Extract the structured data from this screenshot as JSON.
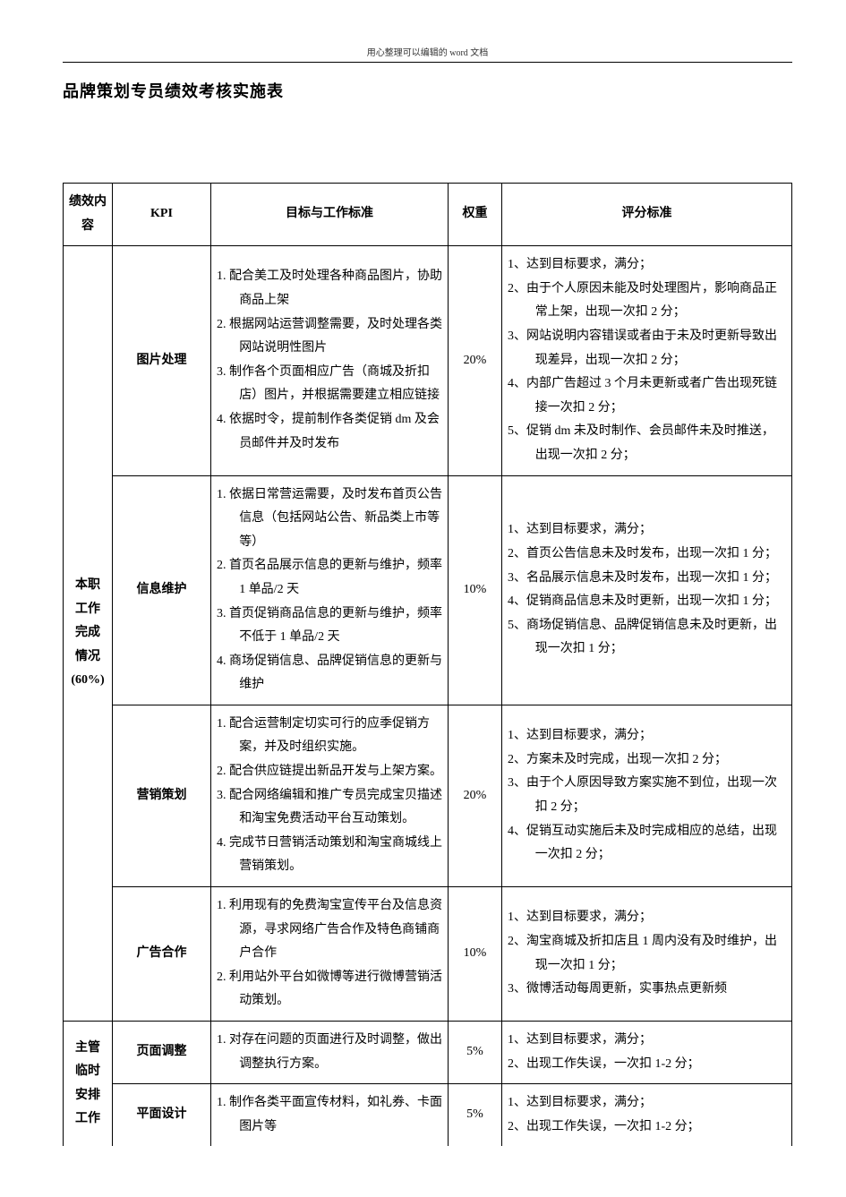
{
  "header_small": "用心整理可以编辑的 word 文档",
  "title": "品牌策划专员绩效考核实施表",
  "columns": {
    "c1": "绩效内容",
    "c2": "KPI",
    "c3": "目标与工作标准",
    "c4": "权重",
    "c5": "评分标准"
  },
  "section1": {
    "label_l1": "本职",
    "label_l2": "工作",
    "label_l3": "完成",
    "label_l4": "情况",
    "label_l5": "(60%)",
    "rows": [
      {
        "kpi": "图片处理",
        "weight": "20%",
        "targets": [
          "1. 配合美工及时处理各种商品图片，协助商品上架",
          "2. 根据网站运营调整需要，及时处理各类网站说明性图片",
          "3. 制作各个页面相应广告（商城及折扣店）图片，并根据需要建立相应链接",
          "4. 依据时令，提前制作各类促销 dm 及会员邮件并及时发布"
        ],
        "scoring": [
          "1、达到目标要求，满分；",
          "2、由于个人原因未能及时处理图片，影响商品正常上架，出现一次扣 2 分；",
          "3、网站说明内容错误或者由于未及时更新导致出现差异，出现一次扣 2 分；",
          "4、内部广告超过 3 个月未更新或者广告出现死链接一次扣 2 分；",
          "5、促销 dm 未及时制作、会员邮件未及时推送，出现一次扣 2 分；"
        ]
      },
      {
        "kpi": "信息维护",
        "weight": "10%",
        "targets": [
          "1. 依据日常营运需要，及时发布首页公告信息（包括网站公告、新品类上市等等）",
          "2. 首页名品展示信息的更新与维护，频率 1 单品/2 天",
          "3. 首页促销商品信息的更新与维护，频率不低于 1 单品/2 天",
          "4. 商场促销信息、品牌促销信息的更新与维护"
        ],
        "scoring": [
          "1、达到目标要求，满分；",
          "2、首页公告信息未及时发布，出现一次扣 1 分；",
          "3、名品展示信息未及时发布，出现一次扣 1 分；",
          "4、促销商品信息未及时更新，出现一次扣 1 分；",
          "5、商场促销信息、品牌促销信息未及时更新，出现一次扣 1 分；"
        ]
      },
      {
        "kpi": "营销策划",
        "weight": "20%",
        "targets": [
          "1. 配合运营制定切实可行的应季促销方案，并及时组织实施。",
          "2. 配合供应链提出新品开发与上架方案。",
          "3. 配合网络编辑和推广专员完成宝贝描述和淘宝免费活动平台互动策划。",
          "4. 完成节日营销活动策划和淘宝商城线上营销策划。"
        ],
        "scoring": [
          "1、达到目标要求，满分；",
          "2、方案未及时完成，出现一次扣 2 分；",
          "3、由于个人原因导致方案实施不到位，出现一次扣 2 分；",
          "4、促销互动实施后未及时完成相应的总结，出现一次扣 2 分；"
        ]
      },
      {
        "kpi": "广告合作",
        "weight": "10%",
        "targets": [
          "1. 利用现有的免费淘宝宣传平台及信息资源，寻求网络广告合作及特色商铺商户合作",
          "2. 利用站外平台如微博等进行微博营销活动策划。"
        ],
        "scoring": [
          "1、达到目标要求，满分；",
          "2、淘宝商城及折扣店且 1 周内没有及时维护，出现一次扣 1 分；",
          "3、微博活动每周更新，实事热点更新频"
        ]
      }
    ]
  },
  "section2": {
    "label_l1": "主管",
    "label_l2": "临时",
    "label_l3": "安排",
    "label_l4": "工作",
    "rows": [
      {
        "kpi": "页面调整",
        "weight": "5%",
        "targets": [
          "1. 对存在问题的页面进行及时调整，做出调整执行方案。"
        ],
        "scoring": [
          "1、达到目标要求，满分；",
          "2、出现工作失误，一次扣 1-2 分；"
        ]
      },
      {
        "kpi": "平面设计",
        "weight": "5%",
        "targets": [
          "1. 制作各类平面宣传材料，如礼券、卡面图片等"
        ],
        "scoring": [
          "1、达到目标要求，满分；",
          "2、出现工作失误，一次扣 1-2 分；"
        ]
      }
    ]
  }
}
